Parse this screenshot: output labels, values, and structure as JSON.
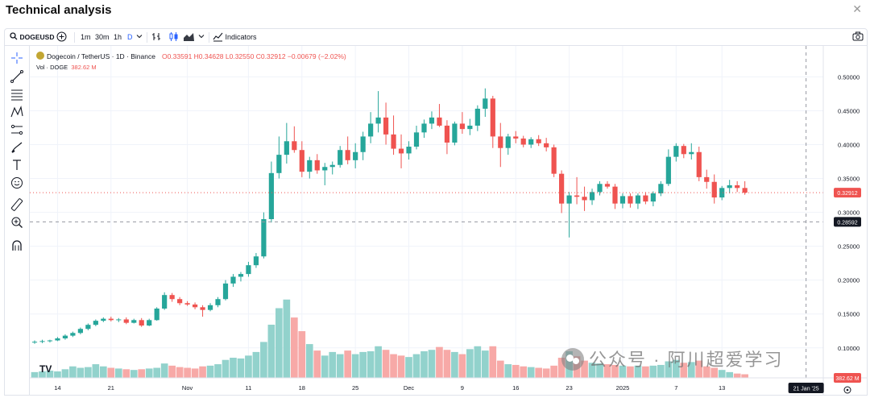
{
  "window": {
    "title": "Technical analysis",
    "close_label": "✕"
  },
  "toolbar": {
    "symbol": "DOGEUSD",
    "intervals": [
      "1m",
      "30m",
      "1h",
      "D"
    ],
    "active_interval": "D",
    "indicators_label": "Indicators"
  },
  "legend": {
    "pair": "Dogecoin / TetherUS · 1D · Binance",
    "ohlc": "O0.33591 H0.34628 L0.32550 C0.32912 −0.00679 (−2.02%)",
    "vol_label": "Vol · DOGE",
    "vol_value": "382.62 M"
  },
  "watermark": "公众号 · 阿川超爱学习",
  "tv_logo": "TV",
  "colors": {
    "up": "#26a69a",
    "down": "#ef5350",
    "vol_up": "#92d2cc",
    "vol_down": "#f7a9a7",
    "grid": "#f0f3fa",
    "axis_text": "#131722"
  },
  "chart_data": {
    "type": "candlestick",
    "symbol": "DOGEUSDT",
    "exchange": "Binance",
    "timeframe": "1D",
    "x_ticks": [
      "14",
      "21",
      "Nov",
      "11",
      "18",
      "25",
      "Dec",
      "9",
      "16",
      "23",
      "2025",
      "7",
      "13"
    ],
    "y_ticks": [
      "0.50000",
      "0.45000",
      "0.40000",
      "0.35000",
      "0.30000",
      "0.25000",
      "0.20000",
      "0.15000",
      "0.10000"
    ],
    "y_range": [
      0.07,
      0.51
    ],
    "last_price_label": "0.32912",
    "crosshair_price_label": "0.28592",
    "crosshair_date_label": "21 Jan '25",
    "volume_label": "382.62 M",
    "candles": [
      {
        "o": 0.108,
        "h": 0.111,
        "l": 0.106,
        "c": 0.109
      },
      {
        "o": 0.109,
        "h": 0.112,
        "l": 0.107,
        "c": 0.11
      },
      {
        "o": 0.11,
        "h": 0.112,
        "l": 0.108,
        "c": 0.111
      },
      {
        "o": 0.111,
        "h": 0.116,
        "l": 0.11,
        "c": 0.114
      },
      {
        "o": 0.114,
        "h": 0.12,
        "l": 0.112,
        "c": 0.118
      },
      {
        "o": 0.118,
        "h": 0.124,
        "l": 0.116,
        "c": 0.122
      },
      {
        "o": 0.122,
        "h": 0.13,
        "l": 0.12,
        "c": 0.128
      },
      {
        "o": 0.128,
        "h": 0.136,
        "l": 0.126,
        "c": 0.134
      },
      {
        "o": 0.134,
        "h": 0.142,
        "l": 0.132,
        "c": 0.14
      },
      {
        "o": 0.14,
        "h": 0.145,
        "l": 0.138,
        "c": 0.143
      },
      {
        "o": 0.143,
        "h": 0.146,
        "l": 0.139,
        "c": 0.141
      },
      {
        "o": 0.141,
        "h": 0.144,
        "l": 0.138,
        "c": 0.142
      },
      {
        "o": 0.142,
        "h": 0.145,
        "l": 0.135,
        "c": 0.137
      },
      {
        "o": 0.137,
        "h": 0.143,
        "l": 0.136,
        "c": 0.141
      },
      {
        "o": 0.141,
        "h": 0.144,
        "l": 0.131,
        "c": 0.133
      },
      {
        "o": 0.133,
        "h": 0.143,
        "l": 0.132,
        "c": 0.141
      },
      {
        "o": 0.141,
        "h": 0.16,
        "l": 0.14,
        "c": 0.158
      },
      {
        "o": 0.158,
        "h": 0.182,
        "l": 0.156,
        "c": 0.178
      },
      {
        "o": 0.178,
        "h": 0.181,
        "l": 0.168,
        "c": 0.172
      },
      {
        "o": 0.172,
        "h": 0.175,
        "l": 0.163,
        "c": 0.166
      },
      {
        "o": 0.166,
        "h": 0.169,
        "l": 0.162,
        "c": 0.164
      },
      {
        "o": 0.164,
        "h": 0.167,
        "l": 0.157,
        "c": 0.16
      },
      {
        "o": 0.16,
        "h": 0.163,
        "l": 0.146,
        "c": 0.156
      },
      {
        "o": 0.156,
        "h": 0.166,
        "l": 0.154,
        "c": 0.163
      },
      {
        "o": 0.163,
        "h": 0.175,
        "l": 0.16,
        "c": 0.172
      },
      {
        "o": 0.172,
        "h": 0.2,
        "l": 0.17,
        "c": 0.195
      },
      {
        "o": 0.195,
        "h": 0.209,
        "l": 0.19,
        "c": 0.205
      },
      {
        "o": 0.205,
        "h": 0.212,
        "l": 0.198,
        "c": 0.209
      },
      {
        "o": 0.209,
        "h": 0.227,
        "l": 0.205,
        "c": 0.222
      },
      {
        "o": 0.222,
        "h": 0.24,
        "l": 0.218,
        "c": 0.235
      },
      {
        "o": 0.235,
        "h": 0.3,
        "l": 0.232,
        "c": 0.29
      },
      {
        "o": 0.29,
        "h": 0.375,
        "l": 0.285,
        "c": 0.358
      },
      {
        "o": 0.358,
        "h": 0.412,
        "l": 0.35,
        "c": 0.385
      },
      {
        "o": 0.385,
        "h": 0.432,
        "l": 0.372,
        "c": 0.405
      },
      {
        "o": 0.405,
        "h": 0.427,
        "l": 0.388,
        "c": 0.392
      },
      {
        "o": 0.392,
        "h": 0.405,
        "l": 0.352,
        "c": 0.36
      },
      {
        "o": 0.36,
        "h": 0.382,
        "l": 0.35,
        "c": 0.377
      },
      {
        "o": 0.377,
        "h": 0.386,
        "l": 0.357,
        "c": 0.362
      },
      {
        "o": 0.362,
        "h": 0.373,
        "l": 0.34,
        "c": 0.367
      },
      {
        "o": 0.367,
        "h": 0.375,
        "l": 0.356,
        "c": 0.37
      },
      {
        "o": 0.37,
        "h": 0.398,
        "l": 0.366,
        "c": 0.392
      },
      {
        "o": 0.392,
        "h": 0.412,
        "l": 0.371,
        "c": 0.377
      },
      {
        "o": 0.377,
        "h": 0.402,
        "l": 0.365,
        "c": 0.389
      },
      {
        "o": 0.389,
        "h": 0.419,
        "l": 0.377,
        "c": 0.412
      },
      {
        "o": 0.412,
        "h": 0.448,
        "l": 0.402,
        "c": 0.431
      },
      {
        "o": 0.431,
        "h": 0.479,
        "l": 0.418,
        "c": 0.44
      },
      {
        "o": 0.44,
        "h": 0.462,
        "l": 0.4,
        "c": 0.415
      },
      {
        "o": 0.415,
        "h": 0.443,
        "l": 0.385,
        "c": 0.394
      },
      {
        "o": 0.394,
        "h": 0.415,
        "l": 0.365,
        "c": 0.387
      },
      {
        "o": 0.387,
        "h": 0.405,
        "l": 0.378,
        "c": 0.397
      },
      {
        "o": 0.397,
        "h": 0.428,
        "l": 0.393,
        "c": 0.418
      },
      {
        "o": 0.418,
        "h": 0.437,
        "l": 0.41,
        "c": 0.431
      },
      {
        "o": 0.431,
        "h": 0.449,
        "l": 0.423,
        "c": 0.44
      },
      {
        "o": 0.44,
        "h": 0.46,
        "l": 0.426,
        "c": 0.428
      },
      {
        "o": 0.428,
        "h": 0.436,
        "l": 0.386,
        "c": 0.403
      },
      {
        "o": 0.403,
        "h": 0.434,
        "l": 0.399,
        "c": 0.431
      },
      {
        "o": 0.431,
        "h": 0.448,
        "l": 0.416,
        "c": 0.423
      },
      {
        "o": 0.423,
        "h": 0.438,
        "l": 0.414,
        "c": 0.428
      },
      {
        "o": 0.428,
        "h": 0.458,
        "l": 0.42,
        "c": 0.453
      },
      {
        "o": 0.453,
        "h": 0.483,
        "l": 0.441,
        "c": 0.468
      },
      {
        "o": 0.468,
        "h": 0.472,
        "l": 0.395,
        "c": 0.412
      },
      {
        "o": 0.412,
        "h": 0.432,
        "l": 0.367,
        "c": 0.395
      },
      {
        "o": 0.395,
        "h": 0.416,
        "l": 0.385,
        "c": 0.412
      },
      {
        "o": 0.412,
        "h": 0.42,
        "l": 0.402,
        "c": 0.409
      },
      {
        "o": 0.409,
        "h": 0.413,
        "l": 0.396,
        "c": 0.4
      },
      {
        "o": 0.4,
        "h": 0.411,
        "l": 0.395,
        "c": 0.408
      },
      {
        "o": 0.408,
        "h": 0.414,
        "l": 0.398,
        "c": 0.402
      },
      {
        "o": 0.402,
        "h": 0.41,
        "l": 0.39,
        "c": 0.396
      },
      {
        "o": 0.396,
        "h": 0.4,
        "l": 0.352,
        "c": 0.357
      },
      {
        "o": 0.357,
        "h": 0.362,
        "l": 0.299,
        "c": 0.313
      },
      {
        "o": 0.313,
        "h": 0.33,
        "l": 0.263,
        "c": 0.325
      },
      {
        "o": 0.325,
        "h": 0.352,
        "l": 0.312,
        "c": 0.323
      },
      {
        "o": 0.323,
        "h": 0.338,
        "l": 0.302,
        "c": 0.318
      },
      {
        "o": 0.318,
        "h": 0.335,
        "l": 0.311,
        "c": 0.33
      },
      {
        "o": 0.33,
        "h": 0.346,
        "l": 0.325,
        "c": 0.342
      },
      {
        "o": 0.342,
        "h": 0.346,
        "l": 0.335,
        "c": 0.338
      },
      {
        "o": 0.338,
        "h": 0.342,
        "l": 0.305,
        "c": 0.313
      },
      {
        "o": 0.313,
        "h": 0.328,
        "l": 0.306,
        "c": 0.324
      },
      {
        "o": 0.324,
        "h": 0.328,
        "l": 0.307,
        "c": 0.313
      },
      {
        "o": 0.313,
        "h": 0.328,
        "l": 0.305,
        "c": 0.325
      },
      {
        "o": 0.325,
        "h": 0.33,
        "l": 0.312,
        "c": 0.316
      },
      {
        "o": 0.316,
        "h": 0.331,
        "l": 0.309,
        "c": 0.328
      },
      {
        "o": 0.328,
        "h": 0.346,
        "l": 0.324,
        "c": 0.342
      },
      {
        "o": 0.342,
        "h": 0.393,
        "l": 0.339,
        "c": 0.382
      },
      {
        "o": 0.382,
        "h": 0.402,
        "l": 0.375,
        "c": 0.398
      },
      {
        "o": 0.398,
        "h": 0.401,
        "l": 0.38,
        "c": 0.386
      },
      {
        "o": 0.386,
        "h": 0.402,
        "l": 0.378,
        "c": 0.389
      },
      {
        "o": 0.389,
        "h": 0.397,
        "l": 0.346,
        "c": 0.352
      },
      {
        "o": 0.352,
        "h": 0.363,
        "l": 0.335,
        "c": 0.345
      },
      {
        "o": 0.345,
        "h": 0.356,
        "l": 0.313,
        "c": 0.322
      },
      {
        "o": 0.322,
        "h": 0.339,
        "l": 0.318,
        "c": 0.336
      },
      {
        "o": 0.336,
        "h": 0.348,
        "l": 0.328,
        "c": 0.34
      },
      {
        "o": 0.34,
        "h": 0.346,
        "l": 0.33,
        "c": 0.336
      },
      {
        "o": 0.336,
        "h": 0.346,
        "l": 0.326,
        "c": 0.329
      }
    ],
    "volumes": [
      8,
      9,
      10,
      9,
      12,
      16,
      14,
      15,
      19,
      16,
      14,
      13,
      12,
      11,
      12,
      13,
      14,
      20,
      17,
      15,
      14,
      13,
      16,
      17,
      19,
      25,
      28,
      27,
      31,
      36,
      50,
      74,
      97,
      109,
      84,
      65,
      47,
      38,
      31,
      36,
      33,
      38,
      33,
      36,
      37,
      44,
      39,
      33,
      31,
      29,
      33,
      37,
      39,
      43,
      39,
      36,
      33,
      40,
      44,
      38,
      44,
      24,
      19,
      18,
      16,
      15,
      14,
      13,
      17,
      28,
      37,
      30,
      24,
      21,
      20,
      19,
      18,
      17,
      16,
      17,
      16,
      17,
      18,
      23,
      25,
      21,
      22,
      24,
      16,
      14,
      11,
      8,
      6,
      5
    ],
    "volume_range": [
      0,
      120
    ]
  }
}
